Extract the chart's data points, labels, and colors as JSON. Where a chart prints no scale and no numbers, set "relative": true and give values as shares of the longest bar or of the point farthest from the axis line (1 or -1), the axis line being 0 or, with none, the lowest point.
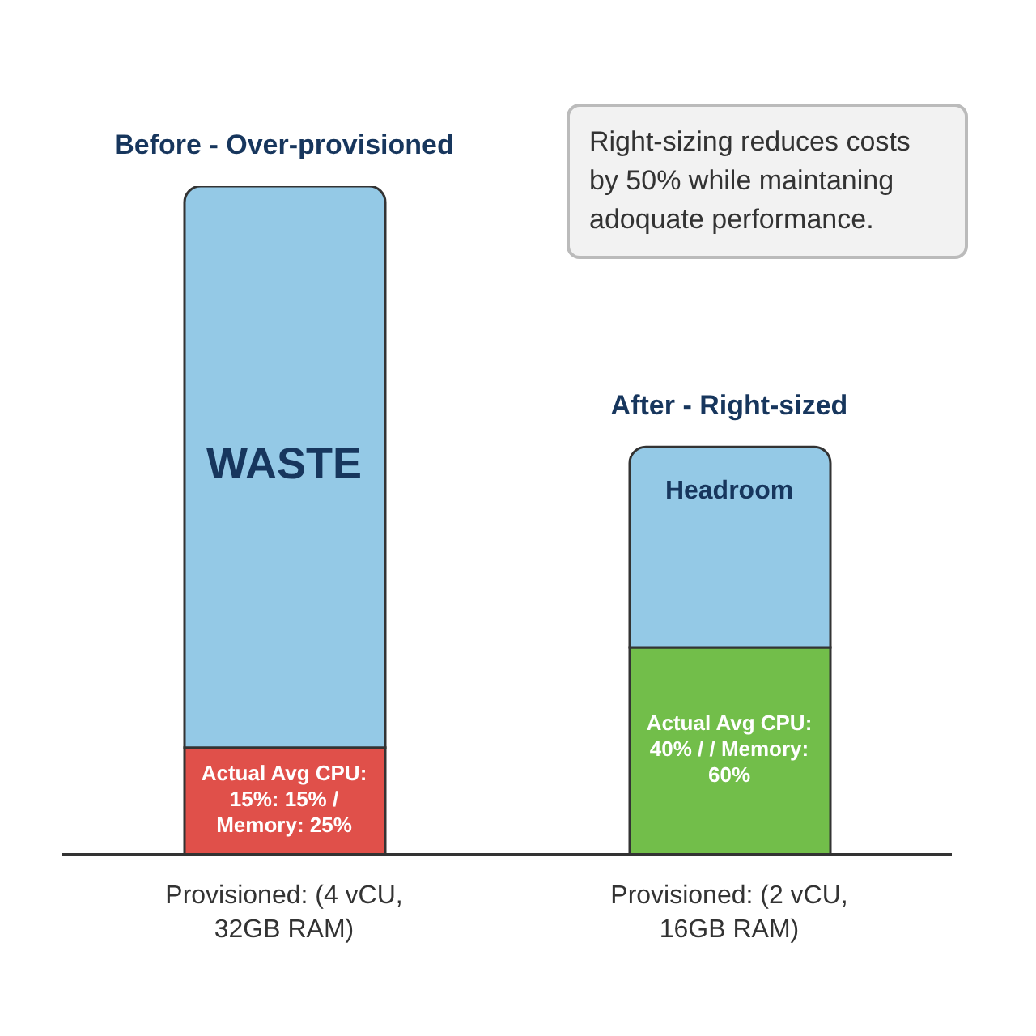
{
  "chart_data": {
    "type": "bar",
    "stacked": true,
    "relative": true,
    "categories": [
      "Provisioned: (4 vCU, 32GB RAM)",
      "Provisioned: (2 vCU, 16GB RAM)"
    ],
    "series": [
      {
        "colors": [
          "#e0504a",
          "#72be4a"
        ],
        "values": [
          0.16,
          0.31
        ]
      },
      {
        "colors": [
          "#94c9e6",
          "#94c9e6"
        ],
        "values": [
          0.84,
          0.3
        ]
      }
    ],
    "annotations": [
      {
        "text": "Before - Over-provisioned",
        "x": "Provisioned: (4 vCU, 32GB RAM)",
        "y": 1
      },
      {
        "text": "After - Right-sized",
        "x": "Provisioned: (2 vCU, 16GB RAM)",
        "y": 0.61
      },
      "WASTE",
      "Headroom",
      "Actual Avg CPU: 15%: 15% / Memory: 25%",
      "Actual Avg CPU: 40% / / Memory: 60%",
      "Right-sizing reduces costs by 50% while maintaning adoquate performance."
    ],
    "grid": false,
    "legend": false
  }
}
